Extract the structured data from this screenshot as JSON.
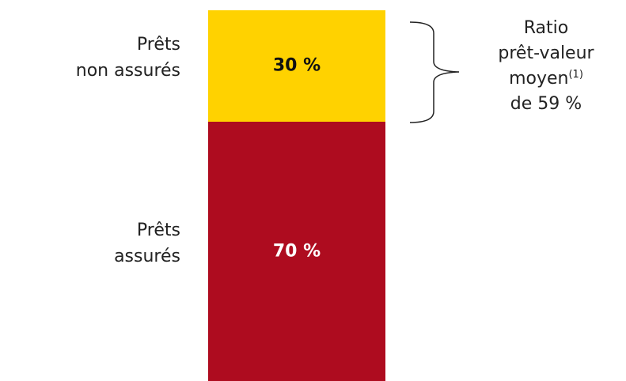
{
  "chart_data": {
    "type": "stacked_bar",
    "series": [
      {
        "name": "Prêts\nassurés",
        "color": "#ae0c1f",
        "values": [
          70
        ],
        "value_labels": [
          "70 %"
        ]
      },
      {
        "name": "Prêts\nnon assurés",
        "color": "#ffd200",
        "values": [
          30
        ],
        "value_labels": [
          "30 %"
        ]
      }
    ],
    "ylim": [
      0,
      100
    ],
    "annotation": {
      "lines": [
        "Ratio",
        "prêt-valeur",
        "moyen",
        "de 59 %"
      ],
      "note": "(1)"
    }
  }
}
